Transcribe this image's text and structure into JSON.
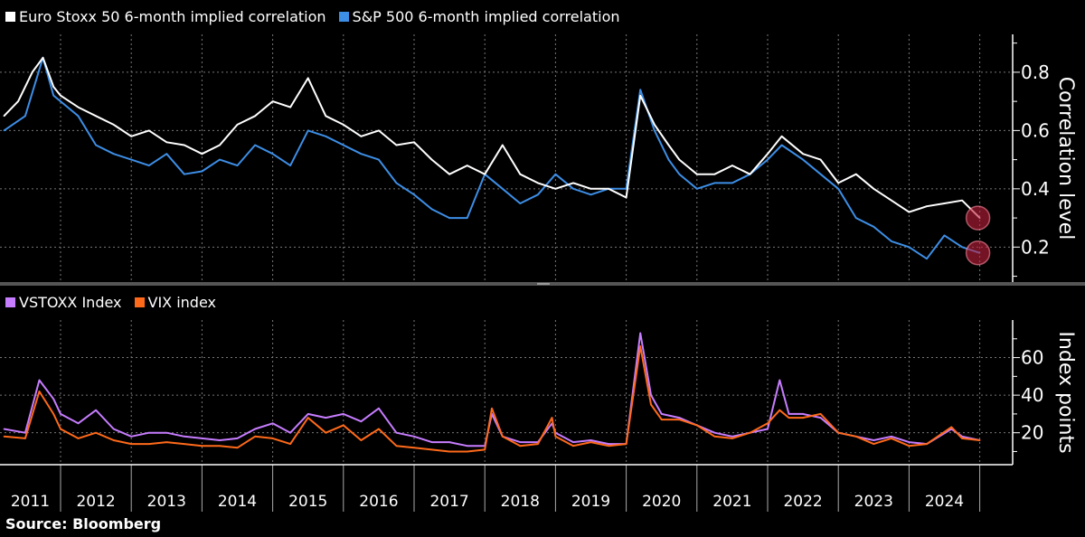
{
  "chart_data": [
    {
      "type": "line",
      "title": "",
      "ylabel": "Correlation level",
      "ylim": [
        0.08,
        0.93
      ],
      "yticks": [
        0.2,
        0.4,
        0.6,
        0.8
      ],
      "ytick_labels": [
        "0.2",
        "0.4",
        "0.6",
        "0.8"
      ],
      "grid": true,
      "legend_placement": "top-left",
      "series": [
        {
          "name": "Euro Stoxx 50 6-month implied correlation",
          "color": "#ffffff",
          "points": [
            [
              2011.2,
              0.65
            ],
            [
              2011.4,
              0.7
            ],
            [
              2011.6,
              0.8
            ],
            [
              2011.75,
              0.85
            ],
            [
              2011.9,
              0.75
            ],
            [
              2012.0,
              0.72
            ],
            [
              2012.25,
              0.68
            ],
            [
              2012.5,
              0.65
            ],
            [
              2012.75,
              0.62
            ],
            [
              2013.0,
              0.58
            ],
            [
              2013.25,
              0.6
            ],
            [
              2013.5,
              0.56
            ],
            [
              2013.75,
              0.55
            ],
            [
              2014.0,
              0.52
            ],
            [
              2014.25,
              0.55
            ],
            [
              2014.5,
              0.62
            ],
            [
              2014.75,
              0.65
            ],
            [
              2015.0,
              0.7
            ],
            [
              2015.25,
              0.68
            ],
            [
              2015.5,
              0.78
            ],
            [
              2015.75,
              0.65
            ],
            [
              2016.0,
              0.62
            ],
            [
              2016.25,
              0.58
            ],
            [
              2016.5,
              0.6
            ],
            [
              2016.75,
              0.55
            ],
            [
              2017.0,
              0.56
            ],
            [
              2017.25,
              0.5
            ],
            [
              2017.5,
              0.45
            ],
            [
              2017.75,
              0.48
            ],
            [
              2018.0,
              0.45
            ],
            [
              2018.25,
              0.55
            ],
            [
              2018.5,
              0.45
            ],
            [
              2018.75,
              0.42
            ],
            [
              2019.0,
              0.4
            ],
            [
              2019.25,
              0.42
            ],
            [
              2019.5,
              0.4
            ],
            [
              2019.75,
              0.4
            ],
            [
              2020.0,
              0.37
            ],
            [
              2020.2,
              0.72
            ],
            [
              2020.4,
              0.62
            ],
            [
              2020.6,
              0.55
            ],
            [
              2020.75,
              0.5
            ],
            [
              2021.0,
              0.45
            ],
            [
              2021.25,
              0.45
            ],
            [
              2021.5,
              0.48
            ],
            [
              2021.75,
              0.45
            ],
            [
              2022.0,
              0.52
            ],
            [
              2022.2,
              0.58
            ],
            [
              2022.5,
              0.52
            ],
            [
              2022.75,
              0.5
            ],
            [
              2023.0,
              0.42
            ],
            [
              2023.25,
              0.45
            ],
            [
              2023.5,
              0.4
            ],
            [
              2023.75,
              0.36
            ],
            [
              2024.0,
              0.32
            ],
            [
              2024.25,
              0.34
            ],
            [
              2024.5,
              0.35
            ],
            [
              2024.75,
              0.36
            ],
            [
              2025.0,
              0.3
            ]
          ]
        },
        {
          "name": "S&P 500 6-month implied correlation",
          "color": "#3d8ee6",
          "points": [
            [
              2011.2,
              0.6
            ],
            [
              2011.5,
              0.65
            ],
            [
              2011.75,
              0.85
            ],
            [
              2011.9,
              0.72
            ],
            [
              2012.0,
              0.7
            ],
            [
              2012.25,
              0.65
            ],
            [
              2012.5,
              0.55
            ],
            [
              2012.75,
              0.52
            ],
            [
              2013.0,
              0.5
            ],
            [
              2013.25,
              0.48
            ],
            [
              2013.5,
              0.52
            ],
            [
              2013.75,
              0.45
            ],
            [
              2014.0,
              0.46
            ],
            [
              2014.25,
              0.5
            ],
            [
              2014.5,
              0.48
            ],
            [
              2014.75,
              0.55
            ],
            [
              2015.0,
              0.52
            ],
            [
              2015.25,
              0.48
            ],
            [
              2015.5,
              0.6
            ],
            [
              2015.75,
              0.58
            ],
            [
              2016.0,
              0.55
            ],
            [
              2016.25,
              0.52
            ],
            [
              2016.5,
              0.5
            ],
            [
              2016.75,
              0.42
            ],
            [
              2017.0,
              0.38
            ],
            [
              2017.25,
              0.33
            ],
            [
              2017.5,
              0.3
            ],
            [
              2017.75,
              0.3
            ],
            [
              2018.0,
              0.45
            ],
            [
              2018.25,
              0.4
            ],
            [
              2018.5,
              0.35
            ],
            [
              2018.75,
              0.38
            ],
            [
              2019.0,
              0.45
            ],
            [
              2019.25,
              0.4
            ],
            [
              2019.5,
              0.38
            ],
            [
              2019.75,
              0.4
            ],
            [
              2020.0,
              0.4
            ],
            [
              2020.2,
              0.74
            ],
            [
              2020.4,
              0.6
            ],
            [
              2020.6,
              0.5
            ],
            [
              2020.75,
              0.45
            ],
            [
              2021.0,
              0.4
            ],
            [
              2021.25,
              0.42
            ],
            [
              2021.5,
              0.42
            ],
            [
              2021.75,
              0.45
            ],
            [
              2022.0,
              0.5
            ],
            [
              2022.2,
              0.55
            ],
            [
              2022.5,
              0.5
            ],
            [
              2022.75,
              0.45
            ],
            [
              2023.0,
              0.4
            ],
            [
              2023.25,
              0.3
            ],
            [
              2023.5,
              0.27
            ],
            [
              2023.75,
              0.22
            ],
            [
              2024.0,
              0.2
            ],
            [
              2024.25,
              0.16
            ],
            [
              2024.5,
              0.24
            ],
            [
              2024.75,
              0.2
            ],
            [
              2025.0,
              0.18
            ]
          ]
        }
      ],
      "annotations": [
        {
          "type": "circle-highlight",
          "x": 2025.0,
          "y": 0.3,
          "color": "#c0203a"
        },
        {
          "type": "circle-highlight",
          "x": 2025.0,
          "y": 0.18,
          "color": "#c0203a"
        }
      ]
    },
    {
      "type": "line",
      "title": "",
      "ylabel": "Index points",
      "ylim": [
        3,
        80
      ],
      "yticks": [
        20,
        40,
        60
      ],
      "ytick_labels": [
        "20",
        "40",
        "60"
      ],
      "grid": true,
      "legend_placement": "top-left",
      "series": [
        {
          "name": "VSTOXX Index",
          "color": "#c77dff",
          "points": [
            [
              2011.2,
              22
            ],
            [
              2011.5,
              20
            ],
            [
              2011.7,
              48
            ],
            [
              2011.9,
              38
            ],
            [
              2012.0,
              30
            ],
            [
              2012.25,
              25
            ],
            [
              2012.5,
              32
            ],
            [
              2012.75,
              22
            ],
            [
              2013.0,
              18
            ],
            [
              2013.25,
              20
            ],
            [
              2013.5,
              20
            ],
            [
              2013.75,
              18
            ],
            [
              2014.0,
              17
            ],
            [
              2014.25,
              16
            ],
            [
              2014.5,
              17
            ],
            [
              2014.75,
              22
            ],
            [
              2015.0,
              25
            ],
            [
              2015.25,
              20
            ],
            [
              2015.5,
              30
            ],
            [
              2015.75,
              28
            ],
            [
              2016.0,
              30
            ],
            [
              2016.25,
              26
            ],
            [
              2016.5,
              33
            ],
            [
              2016.75,
              20
            ],
            [
              2017.0,
              18
            ],
            [
              2017.25,
              15
            ],
            [
              2017.5,
              15
            ],
            [
              2017.75,
              13
            ],
            [
              2018.0,
              13
            ],
            [
              2018.1,
              30
            ],
            [
              2018.25,
              18
            ],
            [
              2018.5,
              15
            ],
            [
              2018.75,
              15
            ],
            [
              2018.95,
              25
            ],
            [
              2019.0,
              20
            ],
            [
              2019.25,
              15
            ],
            [
              2019.5,
              16
            ],
            [
              2019.75,
              14
            ],
            [
              2020.0,
              14
            ],
            [
              2020.2,
              73
            ],
            [
              2020.35,
              40
            ],
            [
              2020.5,
              30
            ],
            [
              2020.75,
              28
            ],
            [
              2021.0,
              24
            ],
            [
              2021.25,
              20
            ],
            [
              2021.5,
              18
            ],
            [
              2021.75,
              20
            ],
            [
              2022.0,
              22
            ],
            [
              2022.17,
              48
            ],
            [
              2022.3,
              30
            ],
            [
              2022.5,
              30
            ],
            [
              2022.75,
              28
            ],
            [
              2023.0,
              20
            ],
            [
              2023.25,
              18
            ],
            [
              2023.5,
              16
            ],
            [
              2023.75,
              18
            ],
            [
              2024.0,
              15
            ],
            [
              2024.25,
              14
            ],
            [
              2024.6,
              22
            ],
            [
              2024.75,
              18
            ],
            [
              2025.0,
              16
            ]
          ]
        },
        {
          "name": "VIX index",
          "color": "#ff6a1a",
          "points": [
            [
              2011.2,
              18
            ],
            [
              2011.5,
              17
            ],
            [
              2011.7,
              42
            ],
            [
              2011.9,
              30
            ],
            [
              2012.0,
              22
            ],
            [
              2012.25,
              17
            ],
            [
              2012.5,
              20
            ],
            [
              2012.75,
              16
            ],
            [
              2013.0,
              14
            ],
            [
              2013.25,
              14
            ],
            [
              2013.5,
              15
            ],
            [
              2013.75,
              14
            ],
            [
              2014.0,
              13
            ],
            [
              2014.25,
              13
            ],
            [
              2014.5,
              12
            ],
            [
              2014.75,
              18
            ],
            [
              2015.0,
              17
            ],
            [
              2015.25,
              14
            ],
            [
              2015.5,
              28
            ],
            [
              2015.75,
              20
            ],
            [
              2016.0,
              24
            ],
            [
              2016.25,
              16
            ],
            [
              2016.5,
              22
            ],
            [
              2016.75,
              13
            ],
            [
              2017.0,
              12
            ],
            [
              2017.25,
              11
            ],
            [
              2017.5,
              10
            ],
            [
              2017.75,
              10
            ],
            [
              2018.0,
              11
            ],
            [
              2018.1,
              33
            ],
            [
              2018.25,
              18
            ],
            [
              2018.5,
              13
            ],
            [
              2018.75,
              14
            ],
            [
              2018.95,
              28
            ],
            [
              2019.0,
              18
            ],
            [
              2019.25,
              13
            ],
            [
              2019.5,
              15
            ],
            [
              2019.75,
              13
            ],
            [
              2020.0,
              14
            ],
            [
              2020.2,
              66
            ],
            [
              2020.35,
              35
            ],
            [
              2020.5,
              27
            ],
            [
              2020.75,
              27
            ],
            [
              2021.0,
              24
            ],
            [
              2021.25,
              18
            ],
            [
              2021.5,
              17
            ],
            [
              2021.75,
              20
            ],
            [
              2022.0,
              25
            ],
            [
              2022.17,
              32
            ],
            [
              2022.3,
              28
            ],
            [
              2022.5,
              28
            ],
            [
              2022.75,
              30
            ],
            [
              2023.0,
              20
            ],
            [
              2023.25,
              18
            ],
            [
              2023.5,
              14
            ],
            [
              2023.75,
              17
            ],
            [
              2024.0,
              13
            ],
            [
              2024.25,
              14
            ],
            [
              2024.6,
              23
            ],
            [
              2024.75,
              17
            ],
            [
              2025.0,
              16
            ]
          ]
        }
      ]
    }
  ],
  "xaxis": {
    "xlim": [
      2011.16,
      2025.2
    ],
    "year_labels": [
      "2011",
      "2012",
      "2013",
      "2014",
      "2015",
      "2016",
      "2017",
      "2018",
      "2019",
      "2020",
      "2021",
      "2022",
      "2023",
      "2024"
    ]
  },
  "legend_top": {
    "items": [
      "Euro Stoxx 50 6-month implied correlation",
      "S&P 500 6-month implied correlation"
    ]
  },
  "legend_bottom": {
    "items": [
      "VSTOXX Index",
      "VIX index"
    ]
  },
  "source": "Source: Bloomberg"
}
